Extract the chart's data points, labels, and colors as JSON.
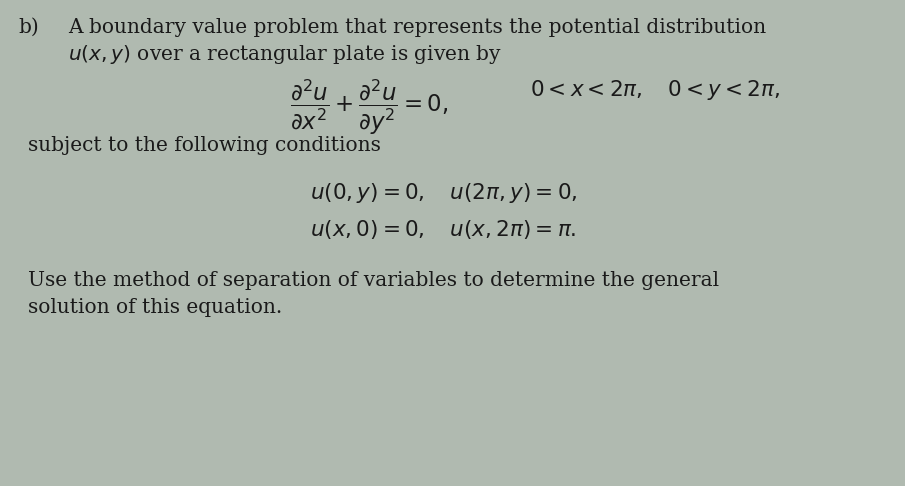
{
  "background_color": "#b0bab0",
  "fig_width": 9.05,
  "fig_height": 4.86,
  "dpi": 100,
  "text_color": "#1a1a1a",
  "fs_body": 14.5,
  "fs_math": 15.5,
  "fs_label": 14.5,
  "label_b": "b)",
  "line1": "A boundary value problem that represents the potential distribution",
  "line2_a": "$u(x, y)$",
  "line2_b": " over a rectangular plate is given by",
  "pde": "$\\dfrac{\\partial^2 u}{\\partial x^2} + \\dfrac{\\partial^2 u}{\\partial y^2} = 0,$",
  "pde_range": "$0 < x < 2\\pi, \\quad 0 < y < 2\\pi,$",
  "subject": "subject to the following conditions",
  "bc1": "$u(0, y) = 0, \\quad u(2\\pi, y) = 0,$",
  "bc2": "$u(x, 0) = 0, \\quad u(x, 2\\pi) = \\pi.$",
  "conc1": "Use the method of separation of variables to determine the general",
  "conc2": "solution of this equation."
}
